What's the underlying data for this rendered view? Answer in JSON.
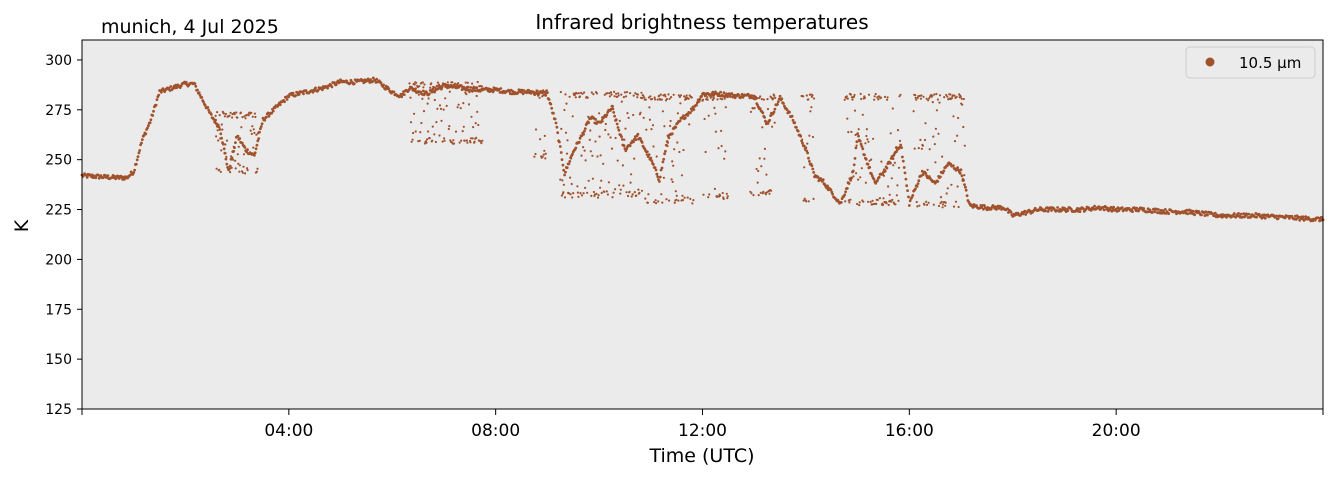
{
  "chart_data": {
    "type": "scatter",
    "title": "Infrared brightness temperatures",
    "location_date": "munich, 4 Jul 2025",
    "xlabel": "Time (UTC)",
    "ylabel": "K",
    "xlim": [
      "00:00",
      "24:00"
    ],
    "ylim": [
      125,
      310
    ],
    "x_ticks": [
      "04:00",
      "08:00",
      "12:00",
      "16:00",
      "20:00"
    ],
    "y_ticks": [
      125,
      150,
      175,
      200,
      225,
      250,
      275,
      300
    ],
    "grid": false,
    "background": "#ebebeb",
    "legend": {
      "placement": "top-right",
      "entries": [
        "10.5 µm"
      ]
    },
    "series": [
      {
        "name": "10.5 µm",
        "color": "#a0522d",
        "x": [
          "00:00",
          "00:40",
          "00:52",
          "01:00",
          "01:10",
          "01:20",
          "01:30",
          "01:45",
          "02:00",
          "02:10",
          "02:20",
          "02:30",
          "02:40",
          "02:50",
          "03:00",
          "03:10",
          "03:20",
          "03:30",
          "03:45",
          "04:00",
          "04:20",
          "04:40",
          "05:00",
          "05:20",
          "05:40",
          "05:50",
          "06:00",
          "06:10",
          "06:20",
          "06:40",
          "07:00",
          "07:20",
          "07:40",
          "08:00",
          "08:20",
          "08:40",
          "09:00",
          "09:10",
          "09:20",
          "09:30",
          "09:40",
          "09:50",
          "10:00",
          "10:15",
          "10:30",
          "10:45",
          "11:00",
          "11:10",
          "11:20",
          "11:35",
          "11:50",
          "12:00",
          "12:20",
          "12:40",
          "13:00",
          "13:15",
          "13:30",
          "13:45",
          "14:00",
          "14:10",
          "14:20",
          "14:40",
          "14:55",
          "15:00",
          "15:20",
          "15:35",
          "15:50",
          "16:00",
          "16:15",
          "16:30",
          "16:45",
          "17:00",
          "17:10",
          "17:30",
          "17:50",
          "18:00",
          "18:10",
          "18:30",
          "19:00",
          "19:20",
          "19:40",
          "20:00",
          "20:30",
          "21:00",
          "21:20",
          "21:40",
          "22:00",
          "22:40",
          "23:20",
          "24:00"
        ],
        "y": [
          242,
          241,
          241,
          244,
          260,
          270,
          284,
          286,
          288,
          288,
          280,
          272,
          266,
          244,
          262,
          255,
          252,
          270,
          276,
          282,
          284,
          286,
          289,
          289,
          290,
          287,
          284,
          282,
          286,
          283,
          287,
          286,
          285,
          285,
          284,
          284,
          283,
          268,
          243,
          254,
          262,
          271,
          268,
          276,
          255,
          262,
          250,
          240,
          261,
          270,
          276,
          283,
          283,
          282,
          282,
          268,
          281,
          270,
          255,
          242,
          239,
          228,
          244,
          262,
          238,
          247,
          258,
          228,
          244,
          238,
          248,
          244,
          227,
          226,
          226,
          222,
          223,
          225,
          225,
          225,
          226,
          225,
          225,
          224,
          224,
          223,
          222,
          222,
          221,
          220
        ],
        "bursts": [
          {
            "from": "02:35",
            "to": "03:25",
            "low": 243,
            "high": 274
          },
          {
            "from": "06:20",
            "to": "07:45",
            "low": 258,
            "high": 289
          },
          {
            "from": "08:45",
            "to": "09:00",
            "low": 250,
            "high": 285
          },
          {
            "from": "09:15",
            "to": "10:50",
            "low": 231,
            "high": 284
          },
          {
            "from": "10:50",
            "to": "11:50",
            "low": 228,
            "high": 283
          },
          {
            "from": "12:00",
            "to": "12:30",
            "low": 230,
            "high": 283
          },
          {
            "from": "12:55",
            "to": "13:25",
            "low": 232,
            "high": 283
          },
          {
            "from": "13:55",
            "to": "14:10",
            "low": 229,
            "high": 283
          },
          {
            "from": "14:45",
            "to": "15:50",
            "low": 227,
            "high": 283
          },
          {
            "from": "16:05",
            "to": "17:05",
            "low": 226,
            "high": 283
          }
        ]
      }
    ]
  }
}
